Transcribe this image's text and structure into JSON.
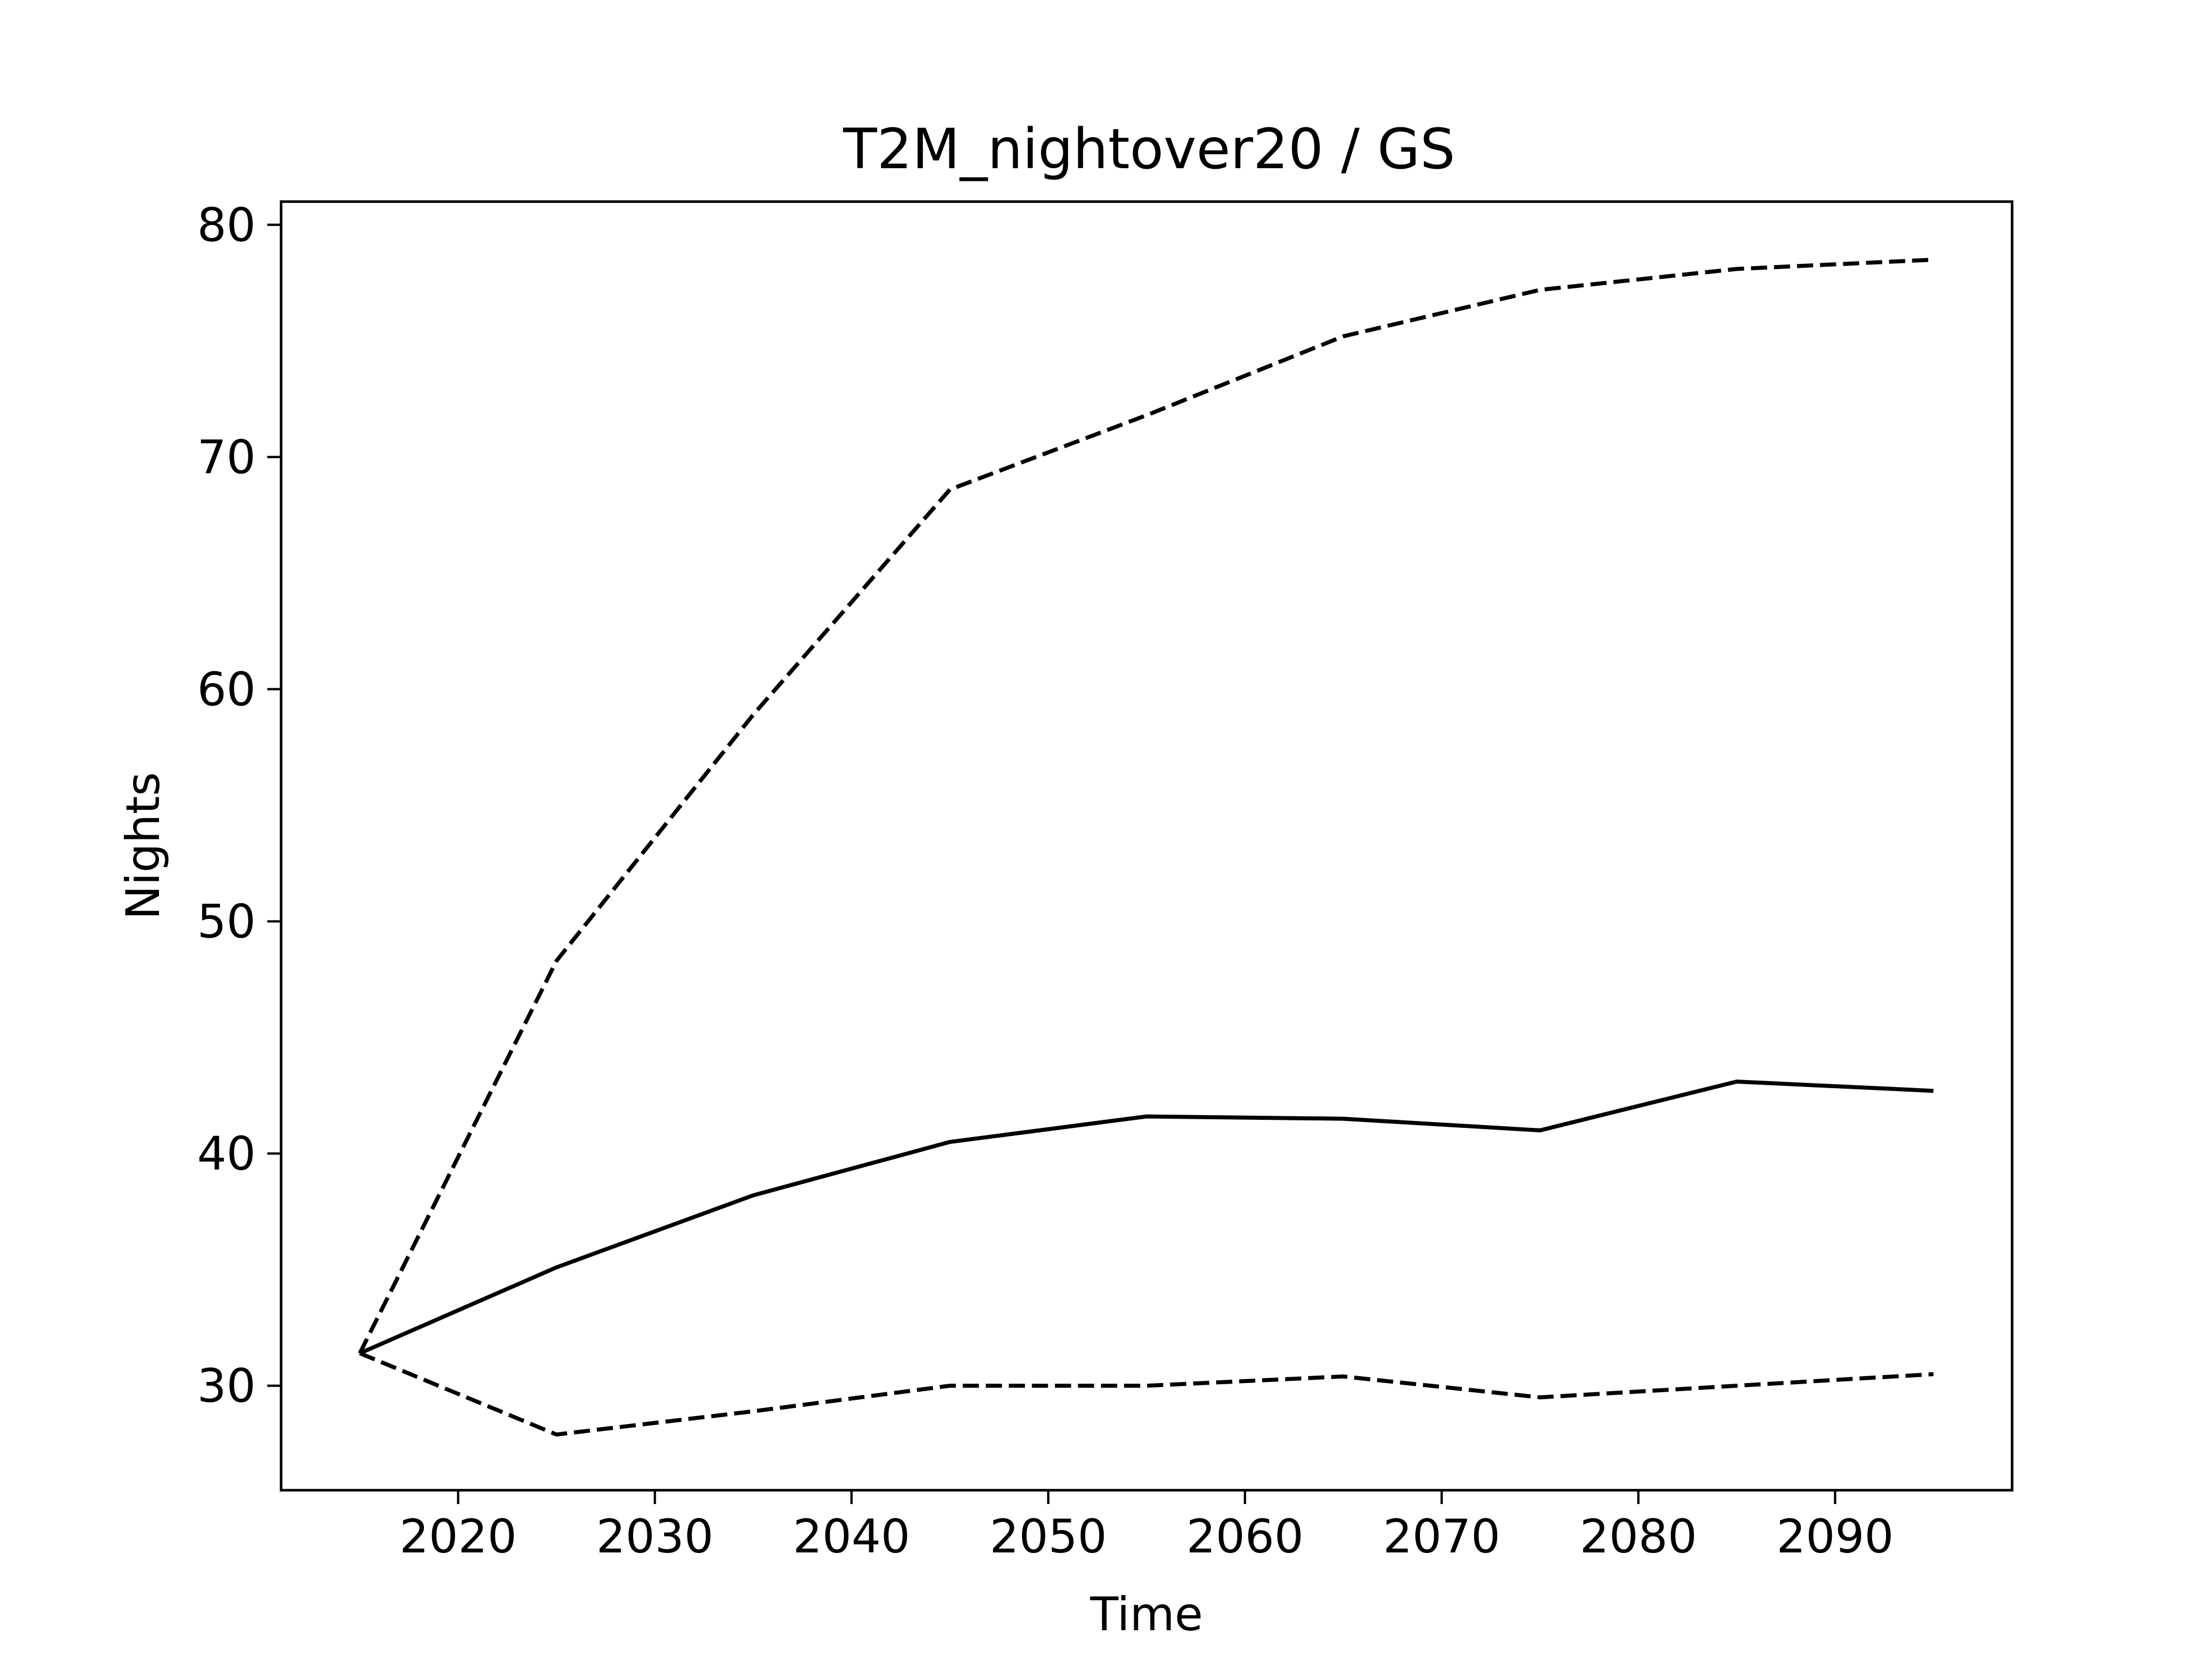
{
  "chart_data": {
    "type": "line",
    "title": "T2M_nightover20 / GS",
    "xlabel": "Time",
    "ylabel": "Nights",
    "xlim": [
      2011,
      2099
    ],
    "ylim": [
      25.5,
      81
    ],
    "xticks": [
      2020,
      2030,
      2040,
      2050,
      2060,
      2070,
      2080,
      2090
    ],
    "yticks": [
      30,
      40,
      50,
      60,
      70,
      80
    ],
    "grid": false,
    "legend": "none",
    "x": [
      2015,
      2025,
      2035,
      2045,
      2055,
      2065,
      2075,
      2085,
      2095
    ],
    "series": [
      {
        "style": "solid",
        "color": "#000000",
        "values": [
          31.4,
          35.1,
          38.2,
          40.5,
          41.6,
          41.5,
          41.0,
          43.1,
          42.7
        ]
      },
      {
        "style": "dashed",
        "color": "#000000",
        "values": [
          31.4,
          48.3,
          58.9,
          68.6,
          71.8,
          75.2,
          77.2,
          78.1,
          78.5
        ]
      },
      {
        "style": "dashed",
        "color": "#000000",
        "values": [
          31.4,
          27.9,
          28.9,
          30.0,
          30.0,
          30.4,
          29.5,
          30.0,
          30.5
        ]
      }
    ]
  }
}
